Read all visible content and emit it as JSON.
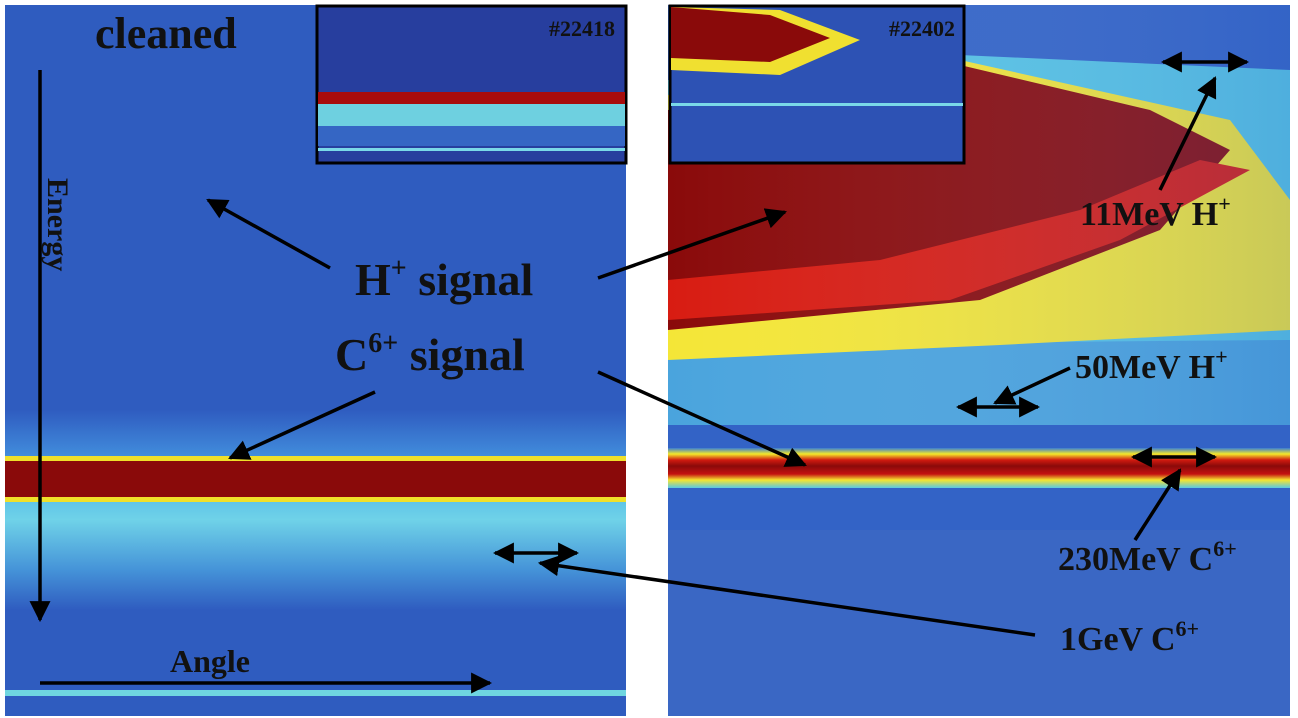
{
  "left_panel": {
    "title": "cleaned",
    "inset_label": "#22418",
    "energy_axis": "Energy",
    "angle_axis": "Angle"
  },
  "right_panel": {
    "inset_label": "#22402"
  },
  "signals": {
    "h_signal": {
      "base": "H",
      "sup": "+",
      "rest": " signal"
    },
    "c_signal": {
      "base": "C",
      "sup": "6+",
      "rest": " signal"
    }
  },
  "annotations": [
    {
      "base": "11MeV H",
      "sup": "+"
    },
    {
      "base": "50MeV H",
      "sup": "+"
    },
    {
      "base": "230MeV C",
      "sup": "6+"
    },
    {
      "base": "1GeV C",
      "sup": "6+"
    }
  ]
}
